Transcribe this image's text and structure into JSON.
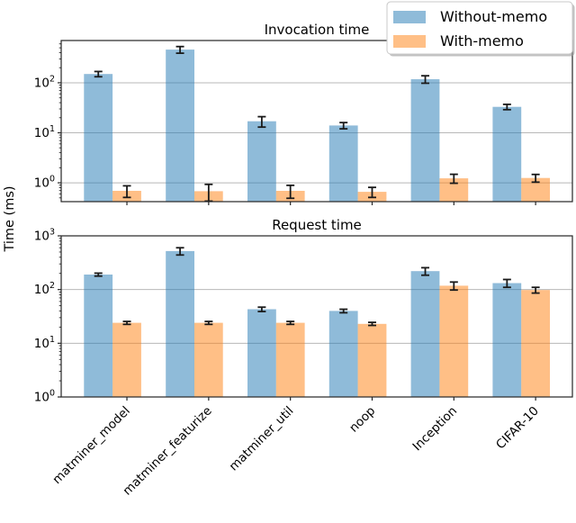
{
  "figure": {
    "ylabel": "Time (ms)",
    "colors": {
      "without_memo": "#1f77b4",
      "with_memo": "#ff7f0e",
      "bar_alpha": 0.5,
      "error_bar": "#1a1a1a",
      "grid": "#b8b8b8",
      "spine": "#262626",
      "text": "#000000",
      "legend_border": "#c8c8c8",
      "legend_bg": "#ffffff",
      "legend_shadow": "#999999"
    },
    "legend": {
      "entries": [
        {
          "label": "Without-memo",
          "series": "without_memo"
        },
        {
          "label": "With-memo",
          "series": "with_memo"
        }
      ]
    }
  },
  "chart_data": [
    {
      "type": "bar",
      "title": "Invocation time",
      "yscale": "log",
      "ylabel": "Time (ms)",
      "ylim": [
        0.42,
        700
      ],
      "grid": "major-y",
      "legend_position": "upper-right-outside-top",
      "categories": [
        "matminer_model",
        "matminer_featurize",
        "matminer_util",
        "noop",
        "Inception",
        "CIFAR-10"
      ],
      "show_x_tick_labels": false,
      "series": [
        {
          "name": "Without-memo",
          "values": [
            150,
            460,
            17,
            14,
            118,
            33
          ],
          "errors": [
            18,
            70,
            4,
            2,
            20,
            4
          ]
        },
        {
          "name": "With-memo",
          "values": [
            0.69,
            0.68,
            0.69,
            0.66,
            1.23,
            1.25
          ],
          "errors": [
            0.18,
            0.25,
            0.2,
            0.15,
            0.25,
            0.22
          ]
        }
      ]
    },
    {
      "type": "bar",
      "title": "Request time",
      "yscale": "log",
      "ylabel": "Time (ms)",
      "ylim": [
        1,
        1000
      ],
      "grid": "major-y",
      "categories": [
        "matminer_model",
        "matminer_featurize",
        "matminer_util",
        "noop",
        "Inception",
        "CIFAR-10"
      ],
      "show_x_tick_labels": true,
      "series": [
        {
          "name": "Without-memo",
          "values": [
            190,
            520,
            43,
            40,
            220,
            132
          ],
          "errors": [
            12,
            80,
            4,
            3,
            35,
            22
          ]
        },
        {
          "name": "With-memo",
          "values": [
            24,
            24,
            24,
            23,
            118,
            98
          ],
          "errors": [
            1.5,
            1.5,
            1.5,
            1.5,
            20,
            12
          ]
        }
      ]
    }
  ]
}
